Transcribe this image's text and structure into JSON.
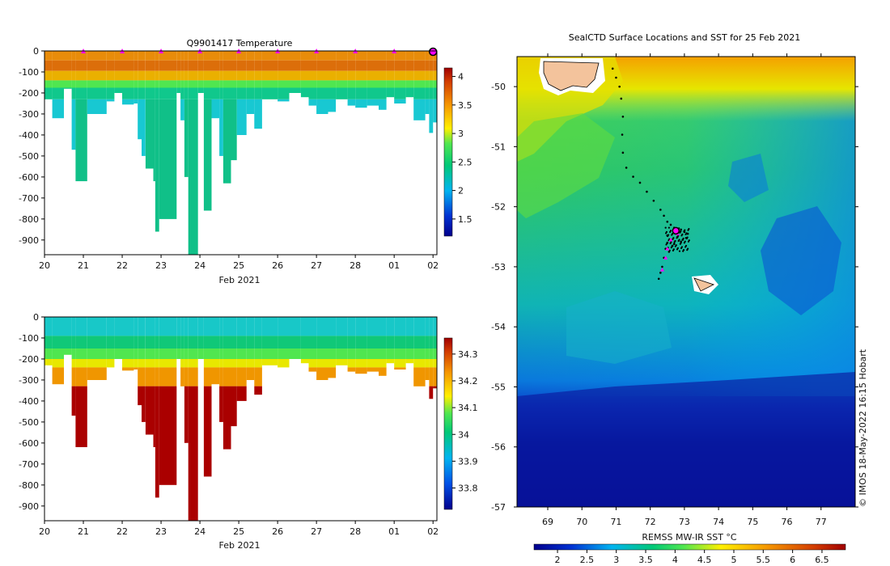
{
  "chart_data": [
    {
      "type": "heatmap",
      "title": "Q9901417  Temperature",
      "xlabel": "Feb 2021",
      "ylabel": "",
      "x_ticks": [
        "20",
        "21",
        "22",
        "23",
        "24",
        "25",
        "26",
        "27",
        "28",
        "01",
        "02"
      ],
      "xlim": [
        20,
        30.1
      ],
      "y_ticks": [
        "0",
        "-100",
        "-200",
        "-300",
        "-400",
        "-500",
        "-600",
        "-700",
        "-800",
        "-900"
      ],
      "ylim": [
        -970,
        0
      ],
      "colorbar": {
        "ticks": [
          "1.5",
          "2",
          "2.5",
          "3",
          "3.5",
          "4"
        ],
        "range": [
          1.2,
          4.15
        ]
      },
      "surface_markers_day": [
        21,
        22,
        23,
        24,
        25,
        26,
        27,
        28,
        29,
        30
      ],
      "profiles": [
        {
          "day": 20.0,
          "max_depth": 230
        },
        {
          "day": 20.2,
          "max_depth": 320
        },
        {
          "day": 20.5,
          "max_depth": 180
        },
        {
          "day": 20.7,
          "max_depth": 470
        },
        {
          "day": 20.8,
          "max_depth": 620
        },
        {
          "day": 21.1,
          "max_depth": 300
        },
        {
          "day": 21.6,
          "max_depth": 240
        },
        {
          "day": 21.8,
          "max_depth": 200
        },
        {
          "day": 22.0,
          "max_depth": 255
        },
        {
          "day": 22.3,
          "max_depth": 250
        },
        {
          "day": 22.4,
          "max_depth": 420
        },
        {
          "day": 22.5,
          "max_depth": 500
        },
        {
          "day": 22.6,
          "max_depth": 560
        },
        {
          "day": 22.8,
          "max_depth": 620
        },
        {
          "day": 22.85,
          "max_depth": 860
        },
        {
          "day": 22.95,
          "max_depth": 800
        },
        {
          "day": 23.4,
          "max_depth": 200
        },
        {
          "day": 23.5,
          "max_depth": 330
        },
        {
          "day": 23.6,
          "max_depth": 600
        },
        {
          "day": 23.7,
          "max_depth": 970
        },
        {
          "day": 23.95,
          "max_depth": 200
        },
        {
          "day": 24.1,
          "max_depth": 760
        },
        {
          "day": 24.3,
          "max_depth": 320
        },
        {
          "day": 24.5,
          "max_depth": 500
        },
        {
          "day": 24.6,
          "max_depth": 630
        },
        {
          "day": 24.8,
          "max_depth": 520
        },
        {
          "day": 24.95,
          "max_depth": 400
        },
        {
          "day": 25.2,
          "max_depth": 300
        },
        {
          "day": 25.4,
          "max_depth": 370
        },
        {
          "day": 25.6,
          "max_depth": 230
        },
        {
          "day": 26.0,
          "max_depth": 240
        },
        {
          "day": 26.3,
          "max_depth": 200
        },
        {
          "day": 26.6,
          "max_depth": 220
        },
        {
          "day": 26.8,
          "max_depth": 260
        },
        {
          "day": 27.0,
          "max_depth": 300
        },
        {
          "day": 27.3,
          "max_depth": 290
        },
        {
          "day": 27.5,
          "max_depth": 230
        },
        {
          "day": 27.8,
          "max_depth": 260
        },
        {
          "day": 28.0,
          "max_depth": 270
        },
        {
          "day": 28.3,
          "max_depth": 260
        },
        {
          "day": 28.6,
          "max_depth": 280
        },
        {
          "day": 28.8,
          "max_depth": 220
        },
        {
          "day": 29.0,
          "max_depth": 250
        },
        {
          "day": 29.3,
          "max_depth": 220
        },
        {
          "day": 29.5,
          "max_depth": 330
        },
        {
          "day": 29.8,
          "max_depth": 300
        },
        {
          "day": 29.9,
          "max_depth": 390
        },
        {
          "day": 30.0,
          "max_depth": 340
        }
      ]
    },
    {
      "type": "heatmap",
      "title": "",
      "xlabel": "Feb 2021",
      "ylabel": "",
      "x_ticks": [
        "20",
        "21",
        "22",
        "23",
        "24",
        "25",
        "26",
        "27",
        "28",
        "01",
        "02"
      ],
      "xlim": [
        20,
        30.1
      ],
      "y_ticks": [
        "0",
        "-100",
        "-200",
        "-300",
        "-400",
        "-500",
        "-600",
        "-700",
        "-800",
        "-900"
      ],
      "ylim": [
        -970,
        0
      ],
      "colorbar": {
        "ticks": [
          "33.8",
          "33.9",
          "34",
          "34.1",
          "34.2",
          "34.3"
        ],
        "range": [
          33.72,
          34.36
        ]
      }
    },
    {
      "type": "heatmap",
      "title": "SealCTD Surface Locations and SST for 25 Feb 2021",
      "xlabel": "",
      "ylabel": "",
      "x_ticks": [
        "69",
        "70",
        "71",
        "72",
        "73",
        "74",
        "75",
        "76",
        "77"
      ],
      "xlim": [
        68.1,
        78.0
      ],
      "y_ticks": [
        "-50",
        "-51",
        "-52",
        "-53",
        "-54",
        "-55",
        "-56",
        "-57"
      ],
      "ylim": [
        -57.0,
        -49.5
      ],
      "colorbar": {
        "label": "REMSS MW-IR SST °C",
        "ticks": [
          "2",
          "2.5",
          "3",
          "3.5",
          "4",
          "4.5",
          "5",
          "5.5",
          "6",
          "6.5"
        ],
        "range": [
          1.6,
          6.9
        ]
      },
      "track_points": [
        [
          70.9,
          -49.7
        ],
        [
          71.0,
          -49.85
        ],
        [
          71.1,
          -50.0
        ],
        [
          71.15,
          -50.2
        ],
        [
          71.2,
          -50.5
        ],
        [
          71.18,
          -50.8
        ],
        [
          71.2,
          -51.1
        ],
        [
          71.3,
          -51.35
        ],
        [
          71.5,
          -51.5
        ],
        [
          71.7,
          -51.6
        ],
        [
          71.9,
          -51.75
        ],
        [
          72.1,
          -51.9
        ],
        [
          72.3,
          -52.05
        ],
        [
          72.4,
          -52.15
        ],
        [
          72.5,
          -52.25
        ],
        [
          72.6,
          -52.3
        ],
        [
          72.7,
          -52.35
        ],
        [
          72.9,
          -52.38
        ],
        [
          73.0,
          -52.42
        ],
        [
          73.1,
          -52.45
        ],
        [
          72.8,
          -52.5
        ],
        [
          72.6,
          -52.55
        ],
        [
          72.5,
          -52.6
        ],
        [
          72.7,
          -52.62
        ],
        [
          72.9,
          -52.58
        ],
        [
          73.05,
          -52.52
        ],
        [
          72.45,
          -52.7
        ],
        [
          72.55,
          -52.75
        ],
        [
          72.4,
          -52.85
        ],
        [
          72.35,
          -53.0
        ],
        [
          72.3,
          -53.1
        ],
        [
          72.25,
          -53.2
        ],
        [
          72.65,
          -52.65
        ],
        [
          72.8,
          -52.45
        ],
        [
          72.95,
          -52.55
        ],
        [
          72.5,
          -52.48
        ]
      ],
      "magenta_points": [
        [
          72.7,
          -52.38
        ],
        [
          72.6,
          -52.55
        ],
        [
          72.5,
          -52.7
        ],
        [
          72.45,
          -52.85
        ],
        [
          72.35,
          -53.05
        ],
        [
          72.8,
          -52.45
        ]
      ],
      "current_location": [
        72.75,
        -52.4
      ],
      "credit": "© IMOS 18-May-2022 16:15 Hobart"
    }
  ]
}
